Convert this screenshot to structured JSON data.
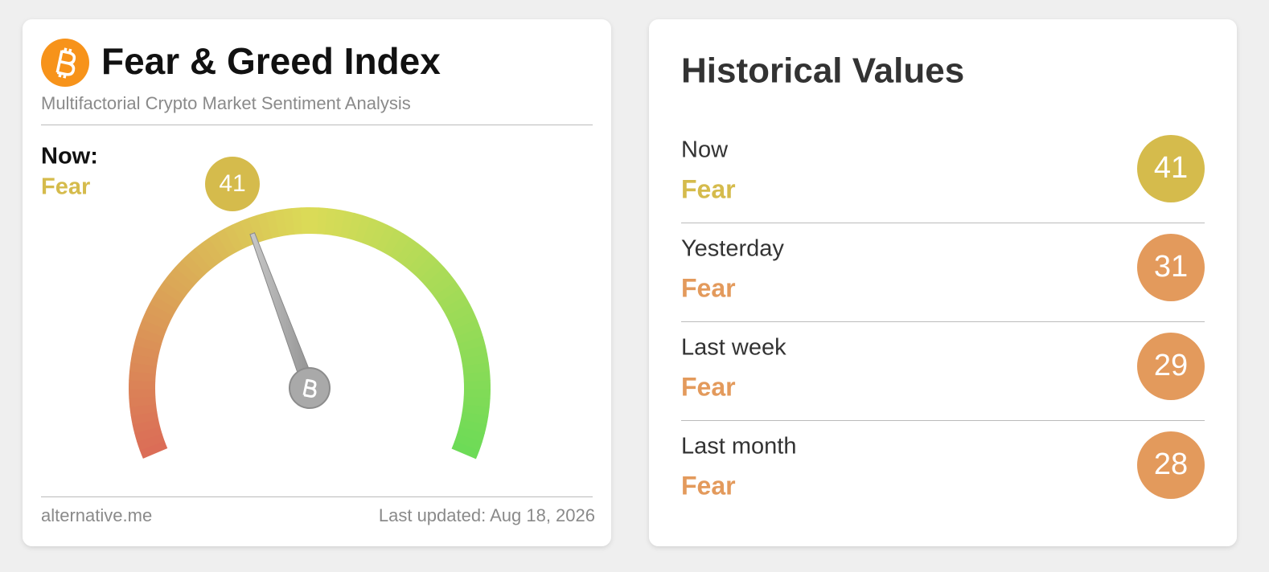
{
  "header": {
    "title": "Fear & Greed Index",
    "subtitle": "Multifactorial Crypto Market Sentiment Analysis"
  },
  "now": {
    "label": "Now:",
    "classification": "Fear",
    "value": 41,
    "color": "#d5bb4c"
  },
  "footer": {
    "source": "alternative.me",
    "updated": "Last updated: Aug 18, 2026"
  },
  "historical": {
    "title": "Historical Values",
    "rows": [
      {
        "label": "Now",
        "classification": "Fear",
        "value": 41,
        "color": "#d5bb4c"
      },
      {
        "label": "Yesterday",
        "classification": "Fear",
        "value": 31,
        "color": "#e39a5c"
      },
      {
        "label": "Last week",
        "classification": "Fear",
        "value": 29,
        "color": "#e39a5c"
      },
      {
        "label": "Last month",
        "classification": "Fear",
        "value": 28,
        "color": "#e39a5c"
      }
    ]
  }
}
